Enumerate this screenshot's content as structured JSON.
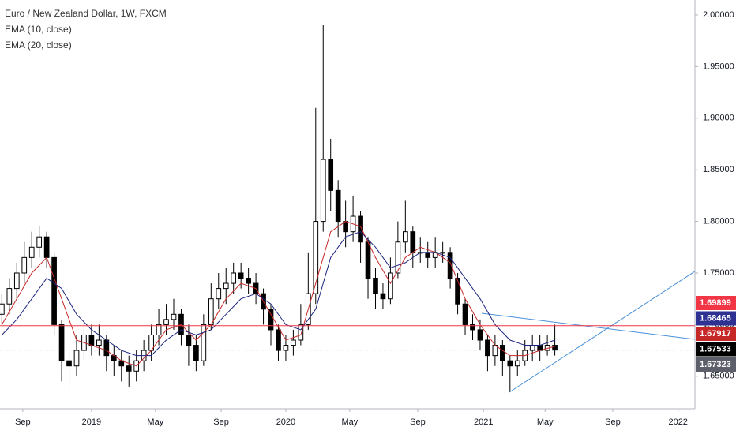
{
  "chart_data": {
    "type": "candlestick",
    "title": "Euro / New Zealand Dollar, 1W, FXCM",
    "x": [
      -24,
      -22,
      -20,
      -18,
      -16,
      -14,
      -12,
      -10,
      -8,
      -6,
      -4,
      -2,
      0,
      2,
      4,
      6,
      8,
      10,
      12,
      14,
      16,
      18,
      20,
      22,
      24,
      26,
      28,
      30,
      32,
      34,
      36,
      38,
      40,
      42,
      44,
      46,
      48,
      50,
      52,
      54,
      56,
      58,
      60,
      62,
      64,
      66,
      68,
      70,
      72,
      74,
      76,
      78,
      80,
      82,
      84,
      86,
      88,
      90,
      92,
      94,
      96,
      98,
      100,
      102,
      104,
      106,
      108,
      110,
      112,
      114,
      116,
      118,
      120,
      122,
      124
    ],
    "ohlc": [
      [
        1.71,
        1.73,
        1.7,
        1.72
      ],
      [
        1.72,
        1.745,
        1.71,
        1.735
      ],
      [
        1.735,
        1.76,
        1.725,
        1.75
      ],
      [
        1.75,
        1.78,
        1.74,
        1.765
      ],
      [
        1.765,
        1.79,
        1.755,
        1.775
      ],
      [
        1.775,
        1.795,
        1.765,
        1.785
      ],
      [
        1.785,
        1.79,
        1.755,
        1.765
      ],
      [
        1.765,
        1.77,
        1.69,
        1.7
      ],
      [
        1.7,
        1.705,
        1.645,
        1.665
      ],
      [
        1.665,
        1.675,
        1.64,
        1.66
      ],
      [
        1.66,
        1.69,
        1.65,
        1.675
      ],
      [
        1.675,
        1.705,
        1.665,
        1.69
      ],
      [
        1.69,
        1.7,
        1.67,
        1.68
      ],
      [
        1.68,
        1.7,
        1.67,
        1.685
      ],
      [
        1.685,
        1.69,
        1.655,
        1.67
      ],
      [
        1.67,
        1.68,
        1.65,
        1.665
      ],
      [
        1.665,
        1.675,
        1.645,
        1.66
      ],
      [
        1.66,
        1.67,
        1.64,
        1.655
      ],
      [
        1.655,
        1.675,
        1.645,
        1.665
      ],
      [
        1.665,
        1.685,
        1.655,
        1.675
      ],
      [
        1.675,
        1.7,
        1.665,
        1.69
      ],
      [
        1.69,
        1.715,
        1.68,
        1.7
      ],
      [
        1.7,
        1.72,
        1.69,
        1.705
      ],
      [
        1.705,
        1.725,
        1.695,
        1.71
      ],
      [
        1.71,
        1.715,
        1.68,
        1.69
      ],
      [
        1.69,
        1.7,
        1.66,
        1.68
      ],
      [
        1.68,
        1.69,
        1.655,
        1.665
      ],
      [
        1.665,
        1.71,
        1.66,
        1.7
      ],
      [
        1.7,
        1.74,
        1.695,
        1.725
      ],
      [
        1.725,
        1.75,
        1.715,
        1.735
      ],
      [
        1.735,
        1.755,
        1.72,
        1.74
      ],
      [
        1.74,
        1.76,
        1.73,
        1.75
      ],
      [
        1.75,
        1.76,
        1.735,
        1.745
      ],
      [
        1.745,
        1.755,
        1.73,
        1.74
      ],
      [
        1.74,
        1.75,
        1.72,
        1.73
      ],
      [
        1.73,
        1.735,
        1.7,
        1.715
      ],
      [
        1.715,
        1.72,
        1.68,
        1.695
      ],
      [
        1.695,
        1.7,
        1.665,
        1.675
      ],
      [
        1.675,
        1.69,
        1.665,
        1.68
      ],
      [
        1.68,
        1.695,
        1.67,
        1.685
      ],
      [
        1.685,
        1.72,
        1.68,
        1.7
      ],
      [
        1.7,
        1.77,
        1.695,
        1.73
      ],
      [
        1.73,
        1.91,
        1.72,
        1.8
      ],
      [
        1.8,
        1.99,
        1.79,
        1.86
      ],
      [
        1.86,
        1.88,
        1.81,
        1.83
      ],
      [
        1.83,
        1.84,
        1.785,
        1.8
      ],
      [
        1.8,
        1.82,
        1.775,
        1.79
      ],
      [
        1.79,
        1.825,
        1.78,
        1.805
      ],
      [
        1.805,
        1.81,
        1.76,
        1.78
      ],
      [
        1.78,
        1.785,
        1.725,
        1.745
      ],
      [
        1.745,
        1.755,
        1.715,
        1.73
      ],
      [
        1.73,
        1.74,
        1.715,
        1.725
      ],
      [
        1.725,
        1.765,
        1.72,
        1.75
      ],
      [
        1.75,
        1.8,
        1.745,
        1.78
      ],
      [
        1.78,
        1.82,
        1.77,
        1.79
      ],
      [
        1.79,
        1.795,
        1.755,
        1.77
      ],
      [
        1.77,
        1.785,
        1.76,
        1.77
      ],
      [
        1.77,
        1.78,
        1.755,
        1.765
      ],
      [
        1.765,
        1.785,
        1.755,
        1.77
      ],
      [
        1.77,
        1.78,
        1.76,
        1.77
      ],
      [
        1.77,
        1.775,
        1.735,
        1.745
      ],
      [
        1.745,
        1.75,
        1.71,
        1.72
      ],
      [
        1.72,
        1.725,
        1.69,
        1.7
      ],
      [
        1.7,
        1.71,
        1.685,
        1.695
      ],
      [
        1.695,
        1.705,
        1.675,
        1.685
      ],
      [
        1.685,
        1.69,
        1.655,
        1.67
      ],
      [
        1.67,
        1.69,
        1.66,
        1.68
      ],
      [
        1.68,
        1.685,
        1.65,
        1.665
      ],
      [
        1.665,
        1.67,
        1.635,
        1.66
      ],
      [
        1.66,
        1.675,
        1.65,
        1.665
      ],
      [
        1.665,
        1.685,
        1.66,
        1.675
      ],
      [
        1.675,
        1.69,
        1.665,
        1.68
      ],
      [
        1.68,
        1.69,
        1.665,
        1.675
      ],
      [
        1.675,
        1.69,
        1.67,
        1.68
      ],
      [
        1.68,
        1.7,
        1.67,
        1.67533
      ]
    ],
    "series": [
      {
        "name": "EMA (10, close)",
        "color": "#c62828",
        "x": [
          -24,
          -20,
          -16,
          -12,
          -8,
          -4,
          0,
          4,
          8,
          12,
          16,
          20,
          24,
          28,
          32,
          36,
          40,
          44,
          48,
          52,
          56,
          60,
          64,
          68,
          72,
          76,
          80,
          84,
          88,
          92,
          96,
          100,
          104,
          108,
          112,
          116,
          120,
          124
        ],
        "values": [
          1.7,
          1.725,
          1.75,
          1.765,
          1.725,
          1.685,
          1.68,
          1.675,
          1.665,
          1.66,
          1.675,
          1.695,
          1.7,
          1.685,
          1.7,
          1.725,
          1.74,
          1.735,
          1.71,
          1.685,
          1.69,
          1.74,
          1.79,
          1.8,
          1.795,
          1.765,
          1.74,
          1.765,
          1.775,
          1.77,
          1.76,
          1.725,
          1.7,
          1.68,
          1.67,
          1.67,
          1.675,
          1.679
        ]
      },
      {
        "name": "EMA (20, close)",
        "color": "#1a237e",
        "x": [
          -24,
          -20,
          -16,
          -12,
          -8,
          -4,
          0,
          4,
          8,
          12,
          16,
          20,
          24,
          28,
          32,
          36,
          40,
          44,
          48,
          52,
          56,
          60,
          64,
          68,
          72,
          76,
          80,
          84,
          88,
          92,
          96,
          100,
          104,
          108,
          112,
          116,
          120,
          124
        ],
        "values": [
          1.69,
          1.705,
          1.725,
          1.745,
          1.735,
          1.71,
          1.695,
          1.685,
          1.675,
          1.67,
          1.67,
          1.685,
          1.695,
          1.69,
          1.695,
          1.71,
          1.725,
          1.73,
          1.72,
          1.7,
          1.695,
          1.715,
          1.765,
          1.785,
          1.79,
          1.775,
          1.755,
          1.76,
          1.77,
          1.77,
          1.765,
          1.745,
          1.725,
          1.7,
          1.685,
          1.68,
          1.68,
          1.685
        ]
      }
    ],
    "markers": [
      {
        "value": 1.69899,
        "color": "#f23645",
        "line": "solid"
      },
      {
        "value": 1.68465,
        "color": "#2e3192"
      },
      {
        "value": 1.67917,
        "color": "#c62828"
      },
      {
        "value": 1.67533,
        "color": "#000000",
        "line": "dotted"
      },
      {
        "value": 1.67323,
        "color": "#5d606b"
      }
    ],
    "ylim": [
      1.6185,
      2.0145
    ],
    "yticks": [
      {
        "value": 1.65,
        "label": "1.65000"
      },
      {
        "value": 1.7,
        "label": "1.70000"
      },
      {
        "value": 1.75,
        "label": "1.75000"
      },
      {
        "value": 1.8,
        "label": "1.80000"
      },
      {
        "value": 1.85,
        "label": "1.85000"
      },
      {
        "value": 1.9,
        "label": "1.90000"
      },
      {
        "value": 1.95,
        "label": "1.95000"
      },
      {
        "value": 2.0,
        "label": "2.00000"
      }
    ],
    "xlim": [
      -24.5,
      161.5
    ],
    "xticks": [
      {
        "value": -18.4,
        "label": "Sep"
      },
      {
        "value": 0,
        "label": "2019"
      },
      {
        "value": 17.1,
        "label": "May"
      },
      {
        "value": 34.7,
        "label": "Sep"
      },
      {
        "value": 52,
        "label": "2020"
      },
      {
        "value": 69.1,
        "label": "May"
      },
      {
        "value": 87.3,
        "label": "Sep"
      },
      {
        "value": 104.9,
        "label": "2021"
      },
      {
        "value": 121.4,
        "label": "May"
      },
      {
        "value": 139.5,
        "label": "Sep"
      },
      {
        "value": 157,
        "label": "2022"
      }
    ]
  }
}
